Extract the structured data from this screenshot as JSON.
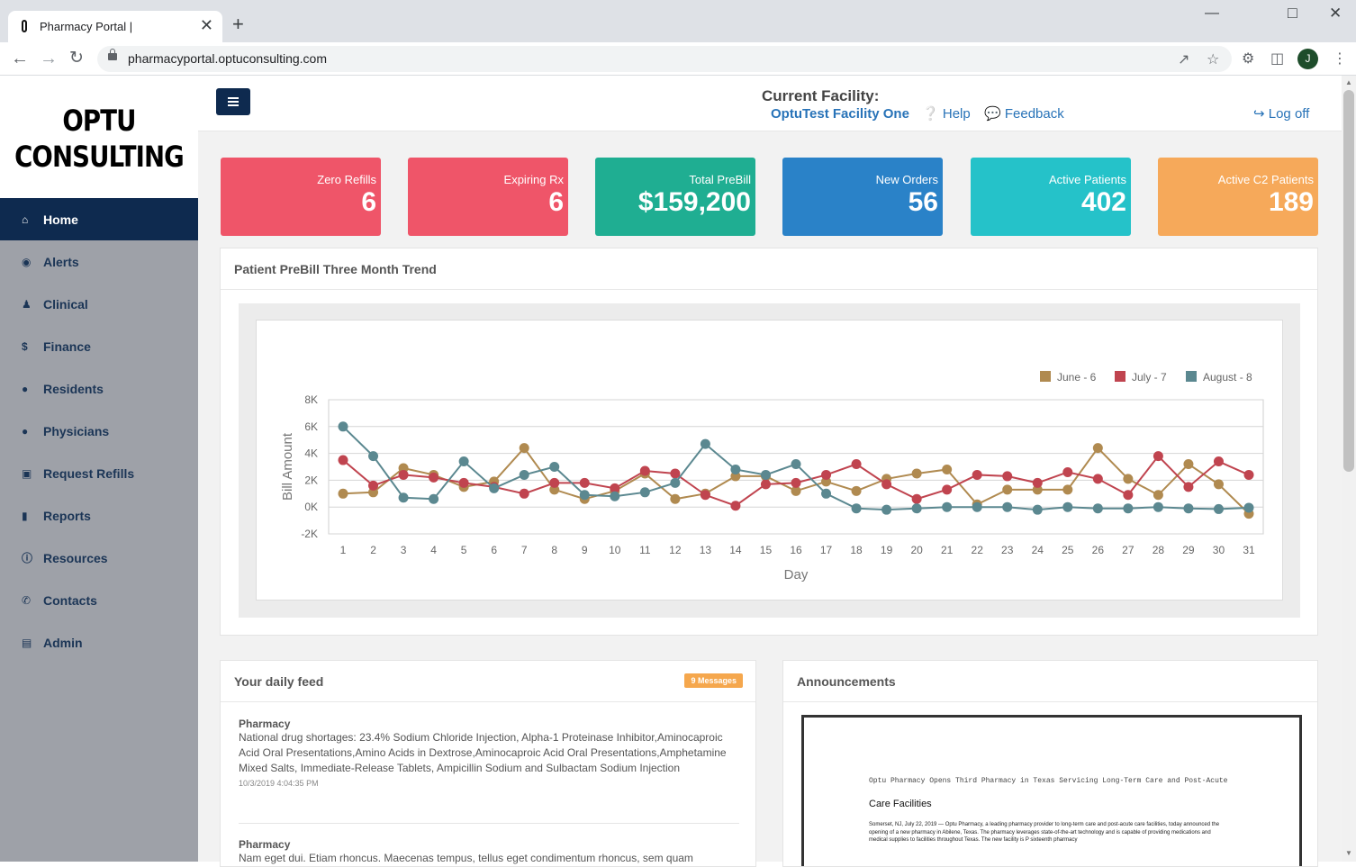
{
  "browser": {
    "tab_title": "Pharmacy Portal |",
    "url": "pharmacyportal.optuconsulting.com",
    "profile_initial": "J",
    "new_tab_glyph": "+",
    "close_glyph": "✕"
  },
  "logo": {
    "line1": "OPTU",
    "line2": "CONSULTING"
  },
  "sidebar": {
    "items": [
      {
        "label": "Home",
        "icon": "home-icon",
        "active": true
      },
      {
        "label": "Alerts",
        "icon": "alert-icon"
      },
      {
        "label": "Clinical",
        "icon": "clinical-icon"
      },
      {
        "label": "Finance",
        "icon": "dollar-icon"
      },
      {
        "label": "Residents",
        "icon": "user-icon"
      },
      {
        "label": "Physicians",
        "icon": "user-icon"
      },
      {
        "label": "Request Refills",
        "icon": "medkit-icon"
      },
      {
        "label": "Reports",
        "icon": "file-icon"
      },
      {
        "label": "Resources",
        "icon": "info-icon"
      },
      {
        "label": "Contacts",
        "icon": "phone-icon"
      },
      {
        "label": "Admin",
        "icon": "book-icon"
      }
    ]
  },
  "header": {
    "facility_label": "Current Facility:",
    "facility_name": "OptuTest Facility One",
    "help": "Help",
    "feedback": "Feedback",
    "logoff": "Log off"
  },
  "stats": [
    {
      "label": "Zero Refills",
      "value": "6",
      "color": "#ef5569"
    },
    {
      "label": "Expiring Rx",
      "value": "6",
      "color": "#ef5569"
    },
    {
      "label": "Total PreBill",
      "value": "$159,200",
      "color": "#1fae92"
    },
    {
      "label": "New Orders",
      "value": "56",
      "color": "#2a82c8"
    },
    {
      "label": "Active Patients",
      "value": "402",
      "color": "#25c2c9"
    },
    {
      "label": "Active C2 Patients",
      "value": "189",
      "color": "#f6a95a"
    }
  ],
  "trend_panel": {
    "title": "Patient PreBill Three Month Trend"
  },
  "chart_data": {
    "type": "line",
    "title": "",
    "xlabel": "Day",
    "ylabel": "Bill Amount",
    "x": [
      1,
      2,
      3,
      4,
      5,
      6,
      7,
      8,
      9,
      10,
      11,
      12,
      13,
      14,
      15,
      16,
      17,
      18,
      19,
      20,
      21,
      22,
      23,
      24,
      25,
      26,
      27,
      28,
      29,
      30,
      31
    ],
    "ylim": [
      -2000,
      8000
    ],
    "yticks": [
      -2000,
      0,
      2000,
      4000,
      6000,
      8000
    ],
    "ytick_labels": [
      "-2K",
      "0K",
      "2K",
      "4K",
      "6K",
      "8K"
    ],
    "legend_position": "top-right",
    "grid": true,
    "series": [
      {
        "name": "June - 6",
        "color": "#b08a50",
        "values": [
          1000,
          1100,
          2900,
          2400,
          1500,
          1900,
          4400,
          1300,
          600,
          1200,
          2500,
          600,
          1000,
          2300,
          2300,
          1200,
          1900,
          1200,
          2100,
          2500,
          2800,
          200,
          1300,
          1300,
          1300,
          4400,
          2100,
          900,
          3200,
          1700,
          -500
        ]
      },
      {
        "name": "July - 7",
        "color": "#c0444f",
        "values": [
          3500,
          1600,
          2400,
          2200,
          1800,
          1500,
          1000,
          1800,
          1800,
          1400,
          2700,
          2500,
          900,
          100,
          1700,
          1800,
          2400,
          3200,
          1700,
          600,
          1300,
          2400,
          2300,
          1800,
          2600,
          2100,
          900,
          3800,
          1500,
          3400,
          2400
        ]
      },
      {
        "name": "August - 8",
        "color": "#5b8890",
        "values": [
          6000,
          3800,
          700,
          600,
          3400,
          1400,
          2400,
          3000,
          900,
          800,
          1100,
          1800,
          4700,
          2800,
          2400,
          3200,
          1000,
          -100,
          -200,
          -100,
          0,
          0,
          0,
          -200,
          0,
          -100,
          -100,
          0,
          -100,
          -150,
          -50
        ]
      }
    ]
  },
  "feed": {
    "title": "Your daily feed",
    "badge": "9 Messages",
    "items": [
      {
        "category": "Pharmacy",
        "text": "National drug shortages: 23.4% Sodium Chloride Injection, Alpha-1 Proteinase Inhibitor,Aminocaproic Acid Oral Presentations,Amino Acids in Dextrose,Aminocaproic Acid Oral Presentations,Amphetamine Mixed Salts, Immediate-Release Tablets, Ampicillin Sodium and Sulbactam Sodium Injection",
        "time": "10/3/2019 4:04:35 PM"
      },
      {
        "category": "Pharmacy",
        "text": "Nam eget dui. Etiam rhoncus. Maecenas tempus, tellus eget condimentum rhoncus, sem quam",
        "time": ""
      }
    ]
  },
  "announcements": {
    "title": "Announcements",
    "doc_headline": "Optu Pharmacy Opens Third Pharmacy in Texas Servicing Long-Term Care and Post-Acute",
    "doc_title": "Care Facilities",
    "doc_body": "Somerset, NJ, July 22, 2019 — Optu Pharmacy, a leading pharmacy provider to long-term care and post-acute care facilities, today announced the opening of a new pharmacy in Abilene, Texas. The pharmacy leverages state-of-the-art technology and is capable of providing medications and medical supplies to facilities throughout Texas. The new facility is P sixteenth pharmacy"
  }
}
